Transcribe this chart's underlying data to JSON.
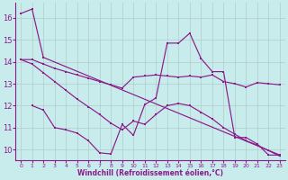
{
  "title": "",
  "xlabel": "Windchill (Refroidissement éolien,°C)",
  "ylabel": "",
  "bg_color": "#c8ecec",
  "line_color": "#8b1a8b",
  "grid_color": "#b0cccc",
  "xlim": [
    -0.5,
    23.5
  ],
  "ylim": [
    9.5,
    16.7
  ],
  "yticks": [
    10,
    11,
    12,
    13,
    14,
    15,
    16
  ],
  "xticks": [
    0,
    1,
    2,
    3,
    4,
    5,
    6,
    7,
    8,
    9,
    10,
    11,
    12,
    13,
    14,
    15,
    16,
    17,
    18,
    19,
    20,
    21,
    22,
    23
  ],
  "lines": [
    {
      "x": [
        0,
        1,
        2,
        23
      ],
      "y": [
        16.2,
        16.4,
        14.2,
        9.75
      ]
    },
    {
      "x": [
        0,
        1,
        2,
        3,
        4,
        5,
        6,
        7,
        8,
        9,
        10,
        11,
        12,
        13,
        14,
        15,
        16,
        17,
        18,
        19,
        20,
        21,
        22,
        23
      ],
      "y": [
        14.1,
        14.1,
        13.9,
        13.7,
        13.55,
        13.4,
        13.25,
        13.1,
        12.95,
        12.8,
        13.3,
        13.35,
        13.4,
        13.35,
        13.3,
        13.35,
        13.3,
        13.4,
        13.1,
        13.0,
        12.85,
        13.05,
        13.0,
        12.95
      ]
    },
    {
      "x": [
        1,
        2,
        3,
        4,
        5,
        6,
        7,
        8,
        9,
        10,
        11,
        12,
        13,
        14,
        15,
        16,
        17,
        18,
        19,
        20,
        21,
        22,
        23
      ],
      "y": [
        12.0,
        11.8,
        11.0,
        10.9,
        10.75,
        10.4,
        9.85,
        9.8,
        11.15,
        10.65,
        12.05,
        12.35,
        14.85,
        14.85,
        15.3,
        14.15,
        13.55,
        13.55,
        10.55,
        10.55,
        10.25,
        9.75,
        9.75
      ]
    },
    {
      "x": [
        0,
        1,
        2,
        3,
        4,
        5,
        6,
        7,
        8,
        9,
        10,
        11,
        12,
        13,
        14,
        15,
        16,
        17,
        18,
        19,
        20,
        21,
        22,
        23
      ],
      "y": [
        14.1,
        13.9,
        13.5,
        13.1,
        12.7,
        12.3,
        11.95,
        11.6,
        11.2,
        10.9,
        11.3,
        11.15,
        11.6,
        12.0,
        12.1,
        12.0,
        11.7,
        11.4,
        11.0,
        10.7,
        10.4,
        10.2,
        9.95,
        9.7
      ]
    }
  ]
}
